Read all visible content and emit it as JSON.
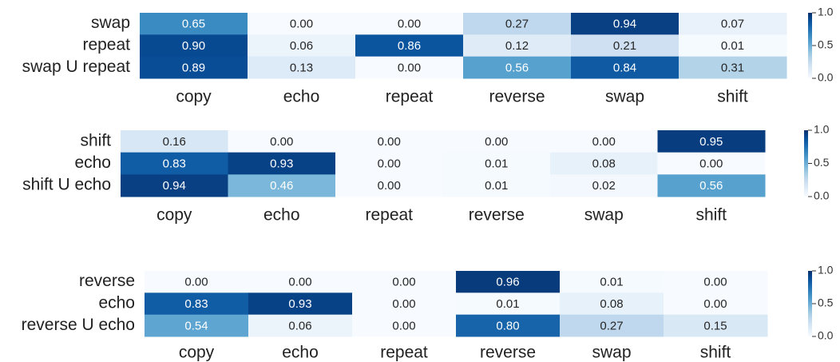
{
  "chart_data": [
    {
      "type": "heatmap",
      "colormap": "Blues",
      "clim": [
        0,
        1
      ],
      "categories": [
        "copy",
        "echo",
        "repeat",
        "reverse",
        "swap",
        "shift"
      ],
      "rows": [
        "swap",
        "repeat",
        "swap U repeat"
      ],
      "values": [
        [
          0.65,
          0,
          0,
          0.27,
          0.94,
          0.07
        ],
        [
          0.9,
          0.06,
          0.86,
          0.12,
          0.21,
          0.01
        ],
        [
          0.89,
          0.13,
          0,
          0.56,
          0.84,
          0.31
        ]
      ],
      "value_labels": [
        [
          "0.65",
          "0.00",
          "0.00",
          "0.27",
          "0.94",
          "0.07"
        ],
        [
          "0.90",
          "0.06",
          "0.86",
          "0.12",
          "0.21",
          "0.01"
        ],
        [
          "0.89",
          "0.13",
          "0.00",
          "0.56",
          "0.84",
          "0.31"
        ]
      ],
      "cticks": [
        {
          "value": 1,
          "label": "1.0"
        },
        {
          "value": 0.5,
          "label": "0.5"
        },
        {
          "value": 0,
          "label": "0.0"
        }
      ]
    },
    {
      "type": "heatmap",
      "colormap": "Blues",
      "clim": [
        0,
        1
      ],
      "categories": [
        "copy",
        "echo",
        "repeat",
        "reverse",
        "swap",
        "shift"
      ],
      "rows": [
        "shift",
        "echo",
        "shift U echo"
      ],
      "values": [
        [
          0.16,
          0,
          0,
          0,
          0,
          0.95
        ],
        [
          0.83,
          0.93,
          0,
          0.01,
          0.08,
          0
        ],
        [
          0.94,
          0.46,
          0,
          0.01,
          0.02,
          0.56
        ]
      ],
      "value_labels": [
        [
          "0.16",
          "0.00",
          "0.00",
          "0.00",
          "0.00",
          "0.95"
        ],
        [
          "0.83",
          "0.93",
          "0.00",
          "0.01",
          "0.08",
          "0.00"
        ],
        [
          "0.94",
          "0.46",
          "0.00",
          "0.01",
          "0.02",
          "0.56"
        ]
      ],
      "cticks": [
        {
          "value": 1,
          "label": "1.0"
        },
        {
          "value": 0.5,
          "label": "0.5"
        },
        {
          "value": 0,
          "label": "0.0"
        }
      ]
    },
    {
      "type": "heatmap",
      "colormap": "Blues",
      "clim": [
        0,
        1
      ],
      "categories": [
        "copy",
        "echo",
        "repeat",
        "reverse",
        "swap",
        "shift"
      ],
      "rows": [
        "reverse",
        "echo",
        "reverse U echo"
      ],
      "values": [
        [
          0,
          0,
          0,
          0.96,
          0.01,
          0
        ],
        [
          0.83,
          0.93,
          0,
          0.01,
          0.08,
          0
        ],
        [
          0.54,
          0.06,
          0,
          0.8,
          0.27,
          0.15
        ]
      ],
      "value_labels": [
        [
          "0.00",
          "0.00",
          "0.00",
          "0.96",
          "0.01",
          "0.00"
        ],
        [
          "0.83",
          "0.93",
          "0.00",
          "0.01",
          "0.08",
          "0.00"
        ],
        [
          "0.54",
          "0.06",
          "0.00",
          "0.80",
          "0.27",
          "0.15"
        ]
      ],
      "cticks": [
        {
          "value": 1,
          "label": "1.0"
        },
        {
          "value": 0.5,
          "label": "0.5"
        },
        {
          "value": 0,
          "label": "0.0"
        }
      ]
    }
  ]
}
